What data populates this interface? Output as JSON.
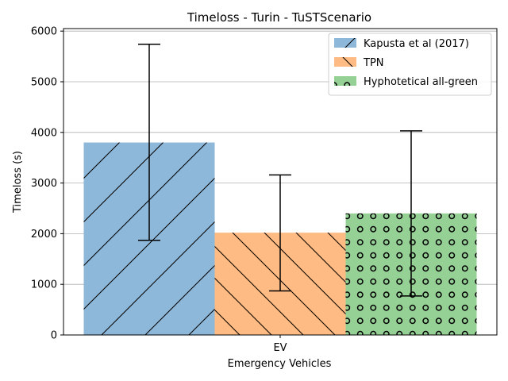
{
  "chart_data": {
    "type": "bar",
    "title": "Timeloss  - Turin - TuSTScenario",
    "xlabel": "Emergency Vehicles",
    "ylabel": "Timeloss (s)",
    "categories": [
      "EV"
    ],
    "ylim": [
      0,
      6050
    ],
    "yticks": [
      0,
      1000,
      2000,
      3000,
      4000,
      5000,
      6000
    ],
    "grid": "horizontal",
    "legend_position": "top-right",
    "series": [
      {
        "name": "Kapusta et al (2017)",
        "values": [
          3800
        ],
        "error_low": [
          1870
        ],
        "error_high": [
          5740
        ],
        "color": "#8db8d9",
        "hatch": "forward-diagonal"
      },
      {
        "name": "TPN",
        "values": [
          2020
        ],
        "error_low": [
          870
        ],
        "error_high": [
          3160
        ],
        "color": "#ffbb84",
        "hatch": "back-diagonal"
      },
      {
        "name": "Hyphotetical all-green",
        "values": [
          2400
        ],
        "error_low": [
          770
        ],
        "error_high": [
          4030
        ],
        "color": "#95d095",
        "hatch": "circles"
      }
    ]
  }
}
